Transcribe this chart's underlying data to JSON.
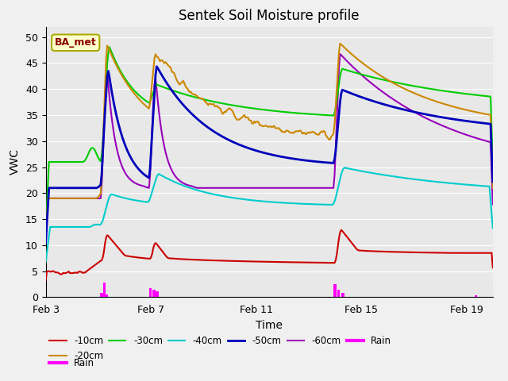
{
  "title": "Sentek Soil Moisture profile",
  "xlabel": "Time",
  "ylabel": "VWC",
  "annotation_text": "BA_met",
  "ylim": [
    0,
    52
  ],
  "yticks": [
    0,
    5,
    10,
    15,
    20,
    25,
    30,
    35,
    40,
    45,
    50
  ],
  "x_tick_labels": [
    "Feb 3",
    "Feb 7",
    "Feb 11",
    "Feb 15",
    "Feb 19"
  ],
  "x_tick_positions": [
    0,
    4,
    8,
    12,
    16
  ],
  "colors": {
    "10cm": "#cc0000",
    "20cm": "#cc8800",
    "30cm": "#00cc00",
    "40cm": "#00cccc",
    "50cm": "#0000bb",
    "60cm": "#9900bb",
    "rain": "#ff00ff"
  },
  "background_color": "#e8e8e8",
  "fig_facecolor": "#f0f0f0",
  "title_fontsize": 12,
  "axis_label_fontsize": 10,
  "tick_fontsize": 9
}
